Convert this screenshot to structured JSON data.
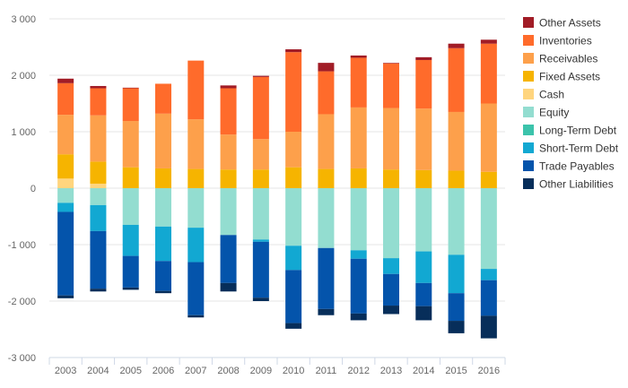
{
  "chart_data": {
    "type": "bar",
    "stacked": true,
    "categories": [
      "2003",
      "2004",
      "2005",
      "2006",
      "2007",
      "2008",
      "2009",
      "2010",
      "2011",
      "2012",
      "2013",
      "2014",
      "2015",
      "2016"
    ],
    "ylim": [
      -3000,
      3000
    ],
    "yticks": [
      3000,
      2000,
      1000,
      0,
      -1000,
      -2000,
      -3000
    ],
    "ytick_labels": [
      "3 000",
      "2 000",
      "1 000",
      "0",
      "-1 000",
      "-2 000",
      "-3 000"
    ],
    "grid": true,
    "legend_position": "right",
    "positive_series": [
      {
        "name": "Cash",
        "color": "#FFD57E",
        "values": [
          170,
          80,
          0,
          0,
          0,
          0,
          0,
          0,
          0,
          0,
          0,
          0,
          0,
          0
        ]
      },
      {
        "name": "Fixed Assets",
        "color": "#F6B400",
        "values": [
          430,
          390,
          370,
          350,
          340,
          330,
          330,
          370,
          340,
          350,
          330,
          320,
          310,
          290
        ]
      },
      {
        "name": "Receivables",
        "color": "#FDA04B",
        "values": [
          700,
          820,
          820,
          970,
          880,
          620,
          540,
          630,
          970,
          1080,
          1090,
          1090,
          1040,
          1210
        ]
      },
      {
        "name": "Inventories",
        "color": "#FF6B2B",
        "values": [
          560,
          480,
          580,
          530,
          1040,
          820,
          1100,
          1410,
          760,
          880,
          790,
          860,
          1130,
          1060
        ]
      },
      {
        "name": "Other Assets",
        "color": "#A11C26",
        "values": [
          80,
          40,
          10,
          0,
          0,
          50,
          20,
          50,
          150,
          40,
          10,
          50,
          80,
          70
        ]
      }
    ],
    "negative_series": [
      {
        "name": "Equity",
        "color": "#93DDD0",
        "values": [
          260,
          300,
          650,
          680,
          700,
          830,
          910,
          1020,
          1060,
          1100,
          1240,
          1120,
          1180,
          1430
        ]
      },
      {
        "name": "Long-Term Debt",
        "color": "#3CC3AB",
        "values": [
          0,
          0,
          0,
          0,
          0,
          0,
          0,
          0,
          0,
          0,
          0,
          0,
          0,
          0
        ]
      },
      {
        "name": "Short-Term Debt",
        "color": "#12A8D2",
        "values": [
          160,
          460,
          550,
          610,
          610,
          0,
          40,
          430,
          0,
          150,
          280,
          560,
          680,
          200
        ]
      },
      {
        "name": "Trade Payables",
        "color": "#0454AB",
        "values": [
          1480,
          1020,
          560,
          530,
          940,
          850,
          990,
          940,
          1080,
          970,
          560,
          410,
          490,
          630
        ]
      },
      {
        "name": "Other Liabilities",
        "color": "#072E5A",
        "values": [
          50,
          50,
          40,
          40,
          40,
          150,
          60,
          100,
          110,
          120,
          150,
          250,
          220,
          400
        ]
      }
    ],
    "legend": [
      {
        "name": "Other Assets",
        "color": "#A11C26"
      },
      {
        "name": "Inventories",
        "color": "#FF6B2B"
      },
      {
        "name": "Receivables",
        "color": "#FDA04B"
      },
      {
        "name": "Fixed Assets",
        "color": "#F6B400"
      },
      {
        "name": "Cash",
        "color": "#FFD57E"
      },
      {
        "name": "Equity",
        "color": "#93DDD0"
      },
      {
        "name": "Long-Term Debt",
        "color": "#3CC3AB"
      },
      {
        "name": "Short-Term Debt",
        "color": "#12A8D2"
      },
      {
        "name": "Trade Payables",
        "color": "#0454AB"
      },
      {
        "name": "Other Liabilities",
        "color": "#072E5A"
      }
    ]
  }
}
